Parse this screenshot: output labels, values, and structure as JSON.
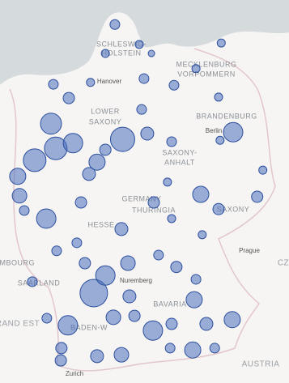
{
  "map": {
    "labels": {
      "schleswig": "SCHLESWIG-",
      "holstein": "HOLSTEIN",
      "mecklenburg": "MECKLENBURG",
      "vorpommern": "VORPOMMERN",
      "hanover": "Hanover",
      "lower": "LOWER",
      "saxony_ls": "SAXONY",
      "brandenburg": "BRANDENBURG",
      "berlin": "Berlin",
      "saxony_anhalt_1": "SAXONY-",
      "saxony_anhalt_2": "ANHALT",
      "germany": "GERMANY",
      "thuringia": "THURINGIA",
      "saxony": "SAXONY",
      "hesse": "HESSE",
      "prague": "Prague",
      "luxembourg": "EMBOURG",
      "saarland": "SAARLAND",
      "nuremberg": "Nuremberg",
      "bavaria": "BAVARIA",
      "baden": "BADEN-W",
      "grand_est": "RAND EST",
      "zurich": "Zurich",
      "austria": "AUSTRIA",
      "cz": "CZ"
    },
    "points": [
      {
        "lon": 9.9,
        "lat": 54.74,
        "size": 6
      },
      {
        "lon": 10.72,
        "lat": 54.32,
        "size": 5
      },
      {
        "lon": 9.58,
        "lat": 54.13,
        "size": 5
      },
      {
        "lon": 11.13,
        "lat": 54.13,
        "size": 4
      },
      {
        "lon": 13.48,
        "lat": 54.35,
        "size": 5
      },
      {
        "lon": 10.88,
        "lat": 53.6,
        "size": 6
      },
      {
        "lon": 11.89,
        "lat": 53.46,
        "size": 6
      },
      {
        "lon": 7.83,
        "lat": 53.48,
        "size": 6
      },
      {
        "lon": 8.35,
        "lat": 53.19,
        "size": 7
      },
      {
        "lon": 7.75,
        "lat": 52.65,
        "size": 13
      },
      {
        "lon": 10.16,
        "lat": 52.32,
        "size": 15
      },
      {
        "lon": 7.91,
        "lat": 52.13,
        "size": 14
      },
      {
        "lon": 7.2,
        "lat": 51.88,
        "size": 14
      },
      {
        "lon": 6.63,
        "lat": 51.54,
        "size": 10
      },
      {
        "lon": 8.49,
        "lat": 52.24,
        "size": 12
      },
      {
        "lon": 13.88,
        "lat": 52.47,
        "size": 12
      },
      {
        "lon": 9.3,
        "lat": 51.84,
        "size": 10
      },
      {
        "lon": 6.69,
        "lat": 51.13,
        "size": 9
      },
      {
        "lon": 7.59,
        "lat": 50.65,
        "size": 12
      },
      {
        "lon": 12.79,
        "lat": 51.16,
        "size": 10
      },
      {
        "lon": 10.12,
        "lat": 50.43,
        "size": 8
      },
      {
        "lon": 10.34,
        "lat": 49.71,
        "size": 9
      },
      {
        "lon": 9.19,
        "lat": 49.08,
        "size": 17
      },
      {
        "lon": 9.58,
        "lat": 49.45,
        "size": 12
      },
      {
        "lon": 8.32,
        "lat": 48.4,
        "size": 12
      },
      {
        "lon": 9.85,
        "lat": 48.57,
        "size": 9
      },
      {
        "lon": 11.18,
        "lat": 48.29,
        "size": 12
      },
      {
        "lon": 12.57,
        "lat": 48.94,
        "size": 10
      },
      {
        "lon": 12.52,
        "lat": 47.88,
        "size": 10
      },
      {
        "lon": 13.85,
        "lat": 48.52,
        "size": 10
      },
      {
        "lon": 12.98,
        "lat": 48.43,
        "size": 8
      },
      {
        "lon": 10.99,
        "lat": 52.44,
        "size": 8
      },
      {
        "lon": 11.81,
        "lat": 52.27,
        "size": 6
      },
      {
        "lon": 13.44,
        "lat": 52.3,
        "size": 5
      },
      {
        "lon": 14.88,
        "lat": 51.67,
        "size": 5
      },
      {
        "lon": 14.69,
        "lat": 51.11,
        "size": 7
      },
      {
        "lon": 13.39,
        "lat": 50.85,
        "size": 7
      },
      {
        "lon": 11.21,
        "lat": 50.99,
        "size": 7
      },
      {
        "lon": 11.67,
        "lat": 51.42,
        "size": 5
      },
      {
        "lon": 8.76,
        "lat": 50.99,
        "size": 7
      },
      {
        "lon": 9.03,
        "lat": 51.59,
        "size": 8
      },
      {
        "lon": 9.58,
        "lat": 52.1,
        "size": 7
      },
      {
        "lon": 8.62,
        "lat": 50.14,
        "size": 6
      },
      {
        "lon": 7.94,
        "lat": 49.97,
        "size": 6
      },
      {
        "lon": 7.12,
        "lat": 49.32,
        "size": 6
      },
      {
        "lon": 8.89,
        "lat": 49.71,
        "size": 7
      },
      {
        "lon": 8.1,
        "lat": 47.92,
        "size": 7
      },
      {
        "lon": 9.3,
        "lat": 47.75,
        "size": 8
      },
      {
        "lon": 10.12,
        "lat": 47.78,
        "size": 9
      },
      {
        "lon": 10.56,
        "lat": 48.6,
        "size": 7
      },
      {
        "lon": 10.39,
        "lat": 49.01,
        "size": 8
      },
      {
        "lon": 11.81,
        "lat": 48.43,
        "size": 7
      },
      {
        "lon": 11.76,
        "lat": 47.92,
        "size": 6
      },
      {
        "lon": 13.26,
        "lat": 47.92,
        "size": 6
      },
      {
        "lon": 12.63,
        "lat": 49.37,
        "size": 6
      },
      {
        "lon": 11.97,
        "lat": 49.63,
        "size": 7
      },
      {
        "lon": 11.37,
        "lat": 49.88,
        "size": 6
      },
      {
        "lon": 12.84,
        "lat": 50.31,
        "size": 5
      },
      {
        "lon": 11.81,
        "lat": 50.65,
        "size": 5
      },
      {
        "lon": 13.39,
        "lat": 53.21,
        "size": 5
      },
      {
        "lon": 12.63,
        "lat": 53.81,
        "size": 5
      },
      {
        "lon": 8.08,
        "lat": 47.66,
        "size": 7
      },
      {
        "lon": 7.61,
        "lat": 48.55,
        "size": 6
      },
      {
        "lon": 6.85,
        "lat": 50.82,
        "size": 6
      },
      {
        "lon": 10.8,
        "lat": 52.95,
        "size": 6
      },
      {
        "lon": 9.08,
        "lat": 53.52,
        "size": 5
      }
    ]
  }
}
